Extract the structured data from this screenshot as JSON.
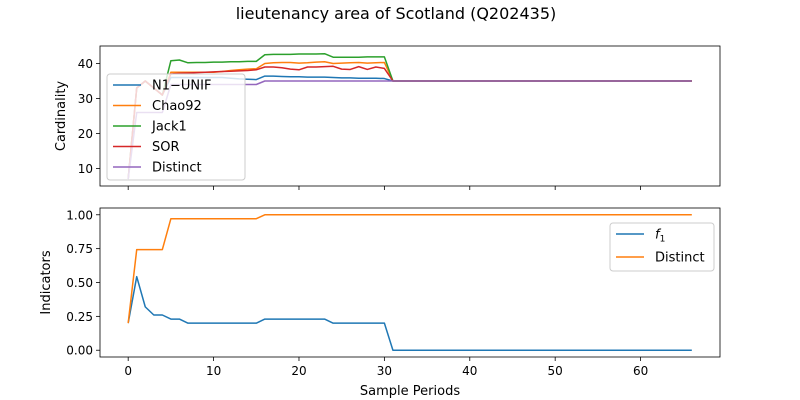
{
  "title": "lieutenancy area of Scotland (Q202435)",
  "chart_data": [
    {
      "type": "line",
      "ylabel": "Cardinality",
      "xlabel": "",
      "xlim": [
        -3.3,
        69.3
      ],
      "ylim": [
        5,
        45
      ],
      "xticks": [
        0,
        10,
        20,
        30,
        40,
        50,
        60
      ],
      "yticks": [
        10,
        20,
        30,
        40
      ],
      "legend_position": "center-left",
      "series": [
        {
          "name": "N1−UNIF",
          "color": "#1f77b4",
          "points": [
            [
              0,
              7
            ],
            [
              1,
              33
            ],
            [
              2,
              35
            ],
            [
              3,
              33
            ],
            [
              4,
              31
            ],
            [
              5,
              36
            ],
            [
              6,
              36
            ],
            [
              7,
              36
            ],
            [
              8,
              36
            ],
            [
              9,
              36
            ],
            [
              10,
              36
            ],
            [
              11,
              36
            ],
            [
              12,
              35.8
            ],
            [
              13,
              35.6
            ],
            [
              14,
              35.5
            ],
            [
              15,
              35.4
            ],
            [
              16,
              36.4
            ],
            [
              17,
              36.4
            ],
            [
              18,
              36.3
            ],
            [
              19,
              36.2
            ],
            [
              20,
              36.2
            ],
            [
              21,
              36.1
            ],
            [
              22,
              36.1
            ],
            [
              23,
              36.1
            ],
            [
              24,
              36
            ],
            [
              25,
              35.9
            ],
            [
              26,
              35.9
            ],
            [
              27,
              35.8
            ],
            [
              28,
              35.8
            ],
            [
              29,
              35.8
            ],
            [
              30,
              35.7
            ],
            [
              31,
              35
            ],
            [
              66,
              35
            ]
          ]
        },
        {
          "name": "Chao92",
          "color": "#ff7f0e",
          "points": [
            [
              0,
              7
            ],
            [
              1,
              33
            ],
            [
              2,
              35
            ],
            [
              3,
              33
            ],
            [
              4,
              31
            ],
            [
              5,
              37.5
            ],
            [
              6,
              37.5
            ],
            [
              7,
              37.5
            ],
            [
              8,
              37.5
            ],
            [
              9,
              37.5
            ],
            [
              10,
              37.5
            ],
            [
              11,
              37.7
            ],
            [
              12,
              38
            ],
            [
              13,
              38.2
            ],
            [
              14,
              38.4
            ],
            [
              15,
              38.5
            ],
            [
              16,
              40
            ],
            [
              17,
              40.2
            ],
            [
              18,
              40.3
            ],
            [
              19,
              40.3
            ],
            [
              20,
              40.1
            ],
            [
              21,
              40.2
            ],
            [
              22,
              40.4
            ],
            [
              23,
              40.5
            ],
            [
              24,
              40
            ],
            [
              25,
              40.1
            ],
            [
              26,
              40.2
            ],
            [
              27,
              40.3
            ],
            [
              28,
              40.1
            ],
            [
              29,
              40.2
            ],
            [
              30,
              40.3
            ],
            [
              31,
              35
            ],
            [
              66,
              35
            ]
          ]
        },
        {
          "name": "Jack1",
          "color": "#2ca02c",
          "points": [
            [
              0,
              7
            ],
            [
              1,
              33
            ],
            [
              2,
              35
            ],
            [
              3,
              33
            ],
            [
              4,
              31
            ],
            [
              5,
              40.8
            ],
            [
              6,
              41
            ],
            [
              7,
              40.2
            ],
            [
              8,
              40.3
            ],
            [
              9,
              40.3
            ],
            [
              10,
              40.4
            ],
            [
              11,
              40.4
            ],
            [
              12,
              40.5
            ],
            [
              13,
              40.5
            ],
            [
              14,
              40.6
            ],
            [
              15,
              40.6
            ],
            [
              16,
              42.5
            ],
            [
              17,
              42.6
            ],
            [
              18,
              42.6
            ],
            [
              19,
              42.6
            ],
            [
              20,
              42.7
            ],
            [
              21,
              42.7
            ],
            [
              22,
              42.7
            ],
            [
              23,
              42.8
            ],
            [
              24,
              41.8
            ],
            [
              25,
              41.8
            ],
            [
              26,
              41.8
            ],
            [
              27,
              41.8
            ],
            [
              28,
              41.9
            ],
            [
              29,
              41.9
            ],
            [
              30,
              41.9
            ],
            [
              31,
              35
            ],
            [
              66,
              35
            ]
          ]
        },
        {
          "name": "SOR",
          "color": "#d62728",
          "points": [
            [
              0,
              7
            ],
            [
              1,
              33
            ],
            [
              2,
              35
            ],
            [
              3,
              33
            ],
            [
              4,
              31
            ],
            [
              5,
              37
            ],
            [
              6,
              37.2
            ],
            [
              7,
              37.3
            ],
            [
              8,
              37.4
            ],
            [
              9,
              37.5
            ],
            [
              10,
              37.6
            ],
            [
              11,
              37.7
            ],
            [
              12,
              37.8
            ],
            [
              13,
              37.9
            ],
            [
              14,
              38
            ],
            [
              15,
              38.2
            ],
            [
              16,
              39
            ],
            [
              17,
              39
            ],
            [
              18,
              38.8
            ],
            [
              19,
              38.4
            ],
            [
              20,
              38.2
            ],
            [
              21,
              39
            ],
            [
              22,
              39
            ],
            [
              23,
              39.1
            ],
            [
              24,
              39.2
            ],
            [
              25,
              38.4
            ],
            [
              26,
              38.3
            ],
            [
              27,
              39.1
            ],
            [
              28,
              38.3
            ],
            [
              29,
              39
            ],
            [
              30,
              38.6
            ],
            [
              31,
              35
            ],
            [
              66,
              35
            ]
          ]
        },
        {
          "name": "Distinct",
          "color": "#9467bd",
          "points": [
            [
              0,
              7
            ],
            [
              1,
              26
            ],
            [
              2,
              26
            ],
            [
              3,
              26
            ],
            [
              4,
              26
            ],
            [
              5,
              34
            ],
            [
              6,
              34
            ],
            [
              7,
              34
            ],
            [
              8,
              34
            ],
            [
              9,
              34
            ],
            [
              10,
              34
            ],
            [
              11,
              34
            ],
            [
              12,
              34
            ],
            [
              13,
              34
            ],
            [
              14,
              34
            ],
            [
              15,
              34
            ],
            [
              16,
              35
            ],
            [
              17,
              35
            ],
            [
              18,
              35
            ],
            [
              19,
              35
            ],
            [
              20,
              35
            ],
            [
              21,
              35
            ],
            [
              22,
              35
            ],
            [
              23,
              35
            ],
            [
              24,
              35
            ],
            [
              25,
              35
            ],
            [
              26,
              35
            ],
            [
              27,
              35
            ],
            [
              28,
              35
            ],
            [
              29,
              35
            ],
            [
              30,
              35
            ],
            [
              31,
              35
            ],
            [
              66,
              35
            ]
          ]
        }
      ]
    },
    {
      "type": "line",
      "ylabel": "Indicators",
      "xlabel": "Sample Periods",
      "xlim": [
        -3.3,
        69.3
      ],
      "ylim": [
        -0.05,
        1.05
      ],
      "xticks": [
        0,
        10,
        20,
        30,
        40,
        50,
        60
      ],
      "yticks": [
        0.0,
        0.25,
        0.5,
        0.75,
        1.0
      ],
      "legend_position": "upper-right",
      "series": [
        {
          "name": "f1",
          "color": "#1f77b4",
          "points": [
            [
              0,
              0.2
            ],
            [
              1,
              0.543
            ],
            [
              2,
              0.32
            ],
            [
              3,
              0.26
            ],
            [
              4,
              0.26
            ],
            [
              5,
              0.23
            ],
            [
              6,
              0.23
            ],
            [
              7,
              0.2
            ],
            [
              15,
              0.2
            ],
            [
              16,
              0.23
            ],
            [
              23,
              0.23
            ],
            [
              24,
              0.2
            ],
            [
              30,
              0.2
            ],
            [
              31,
              0
            ],
            [
              66,
              0
            ]
          ]
        },
        {
          "name": "Distinct",
          "color": "#ff7f0e",
          "points": [
            [
              0,
              0.2
            ],
            [
              1,
              0.743
            ],
            [
              4,
              0.743
            ],
            [
              5,
              0.971
            ],
            [
              15,
              0.971
            ],
            [
              16,
              1
            ],
            [
              66,
              1
            ]
          ]
        }
      ]
    }
  ]
}
